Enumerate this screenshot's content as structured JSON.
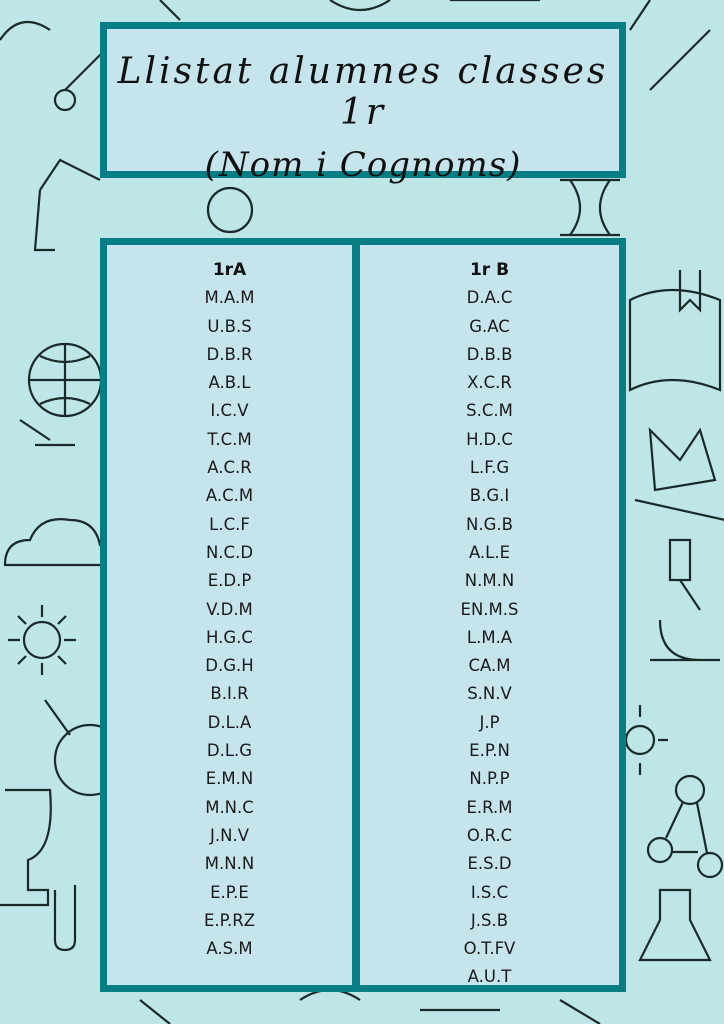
{
  "title": {
    "line1": "Llistat alumnes classes 1r",
    "line2": "(Nom i Cognoms)"
  },
  "colors": {
    "background": "#bfe6e6",
    "panel": "#c6e4ec",
    "border": "#067e84"
  },
  "columns": [
    {
      "header": "1rA",
      "students": [
        "M.A.M",
        "U.B.S",
        "D.B.R",
        "A.B.L",
        "I.C.V",
        "T.C.M",
        "A.C.R",
        "A.C.M",
        "L.C.F",
        "N.C.D",
        "E.D.P",
        "V.D.M",
        "H.G.C",
        "D.G.H",
        "B.I.R",
        "D.L.A",
        "D.L.G",
        "E.M.N",
        "M.N.C",
        "J.N.V",
        "M.N.N",
        "E.P.E",
        "E.P.RZ",
        "A.S.M"
      ]
    },
    {
      "header": "1r B",
      "students": [
        "D.A.C",
        "G.AC",
        "D.B.B",
        "X.C.R",
        "S.C.M",
        "H.D.C",
        "L.F.G",
        "B.G.I",
        "N.G.B",
        "A.L.E",
        "N.M.N",
        "EN.M.S",
        "L.M.A",
        "CA.M",
        "S.N.V",
        "J.P",
        "E.P.N",
        "N.P.P",
        "E.R.M",
        "O.R.C",
        "E.S.D",
        "I.S.C",
        "J.S.B",
        "O.T.FV",
        "A.U.T"
      ]
    }
  ],
  "background_icons": [
    "globe-icon",
    "cloud-icon",
    "sun-icon",
    "trophy-icon",
    "paperclip-icon",
    "microscope-icon",
    "flask-icon",
    "book-icon",
    "hourglass-icon",
    "molecule-icon",
    "flag-icon",
    "magnifier-icon",
    "lamp-icon"
  ]
}
